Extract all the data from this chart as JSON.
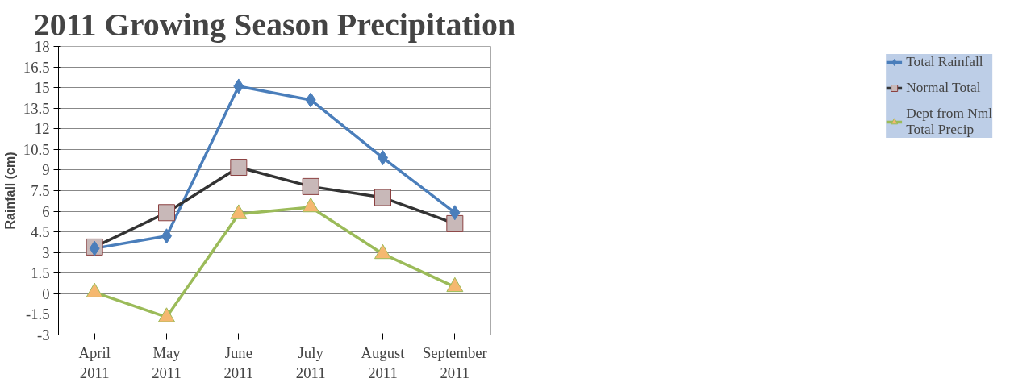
{
  "chart_data": {
    "type": "line",
    "title": "2011 Growing Season Precipitation",
    "ylabel": "Rainfall (cm)",
    "categories": [
      "April\n2011",
      "May\n2011",
      "June\n2011",
      "July\n2011",
      "August\n2011",
      "September\n2011"
    ],
    "series": [
      {
        "name": "Total Rainfall",
        "color": "#4a7ebb",
        "marker": "diamond",
        "values": [
          3.3,
          4.2,
          15.1,
          14.1,
          9.9,
          5.9
        ]
      },
      {
        "name": "Normal Total",
        "color": "#333333",
        "marker": "square",
        "values": [
          3.4,
          5.9,
          9.2,
          7.8,
          7.0,
          5.1
        ]
      },
      {
        "name": "Dept from Nml\nTotal Precip",
        "color": "#9bbb59",
        "marker": "triangle",
        "values": [
          0.1,
          -1.7,
          5.8,
          6.3,
          2.9,
          0.5
        ]
      }
    ],
    "ylim": [
      -3,
      18
    ],
    "yticks": [
      -3,
      -1.5,
      0,
      1.5,
      3,
      4.5,
      6,
      7.5,
      9,
      10.5,
      12,
      13.5,
      15,
      16.5,
      18
    ],
    "grid": "y",
    "legend": "right",
    "line_style": "solid"
  }
}
